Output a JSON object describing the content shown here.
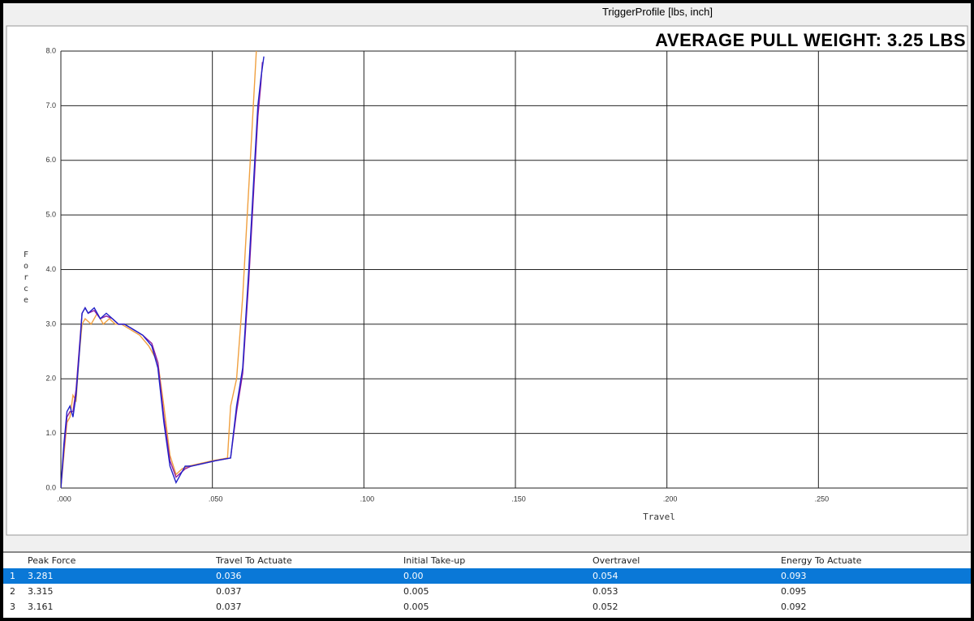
{
  "window": {
    "title": "TriggerProfile [lbs, inch]",
    "banner": "AVERAGE PULL WEIGHT: 3.25 LBS"
  },
  "chart_data": {
    "type": "line",
    "x_label": "Travel",
    "y_label": "Force",
    "xlim": [
      0,
      0.3
    ],
    "ylim": [
      0,
      8
    ],
    "xticks": [
      {
        "value": 0,
        "label": ".000"
      },
      {
        "value": 0.05,
        "label": ".050"
      },
      {
        "value": 0.1,
        "label": ".100"
      },
      {
        "value": 0.15,
        "label": ".150"
      },
      {
        "value": 0.2,
        "label": ".200"
      },
      {
        "value": 0.25,
        "label": ".250"
      }
    ],
    "yticks": [
      {
        "value": 0,
        "label": "0.0"
      },
      {
        "value": 1,
        "label": "1.0"
      },
      {
        "value": 2,
        "label": "2.0"
      },
      {
        "value": 3,
        "label": "3.0"
      },
      {
        "value": 4,
        "label": "4.0"
      },
      {
        "value": 5,
        "label": "5.0"
      },
      {
        "value": 6,
        "label": "6.0"
      },
      {
        "value": 7,
        "label": "7.0"
      },
      {
        "value": 8,
        "label": "8.0"
      }
    ],
    "grid": true,
    "series": [
      {
        "color": "#f0a040",
        "x": [
          0,
          0.001,
          0.002,
          0.003,
          0.004,
          0.005,
          0.006,
          0.007,
          0.008,
          0.01,
          0.012,
          0.014,
          0.016,
          0.018,
          0.02,
          0.023,
          0.026,
          0.029,
          0.032,
          0.034,
          0.036,
          0.038,
          0.04,
          0.042,
          0.046,
          0.05,
          0.055,
          0.056,
          0.058,
          0.06,
          0.062,
          0.0635,
          0.0645
        ],
        "values": [
          0,
          0.6,
          1.2,
          1.3,
          1.7,
          1.6,
          2.4,
          3.0,
          3.1,
          3.0,
          3.2,
          3.0,
          3.1,
          3.0,
          3.0,
          2.9,
          2.8,
          2.6,
          2.3,
          1.5,
          0.6,
          0.25,
          0.35,
          0.4,
          0.45,
          0.5,
          0.55,
          1.5,
          2.0,
          3.5,
          5.5,
          7.0,
          8.0
        ]
      },
      {
        "color": "#9020a0",
        "x": [
          0,
          0.001,
          0.002,
          0.003,
          0.004,
          0.005,
          0.006,
          0.007,
          0.008,
          0.009,
          0.011,
          0.013,
          0.015,
          0.017,
          0.019,
          0.021,
          0.024,
          0.027,
          0.03,
          0.032,
          0.034,
          0.036,
          0.038,
          0.04,
          0.041,
          0.043,
          0.047,
          0.051,
          0.056,
          0.058,
          0.06,
          0.062,
          0.063,
          0.064,
          0.065,
          0.066,
          0.0665
        ],
        "values": [
          0,
          0.7,
          1.3,
          1.4,
          1.4,
          1.8,
          2.5,
          3.2,
          3.3,
          3.2,
          3.25,
          3.1,
          3.15,
          3.1,
          3.0,
          3.0,
          2.9,
          2.8,
          2.65,
          2.3,
          1.3,
          0.5,
          0.2,
          0.3,
          0.35,
          0.4,
          0.45,
          0.5,
          0.55,
          1.4,
          2.1,
          3.8,
          4.8,
          5.8,
          6.8,
          7.4,
          7.8
        ]
      },
      {
        "color": "#2020c8",
        "x": [
          0,
          0.001,
          0.002,
          0.003,
          0.004,
          0.005,
          0.006,
          0.007,
          0.008,
          0.009,
          0.011,
          0.013,
          0.015,
          0.017,
          0.019,
          0.021,
          0.024,
          0.027,
          0.03,
          0.032,
          0.034,
          0.036,
          0.038,
          0.04,
          0.041,
          0.043,
          0.047,
          0.051,
          0.056,
          0.058,
          0.06,
          0.062,
          0.063,
          0.064,
          0.065,
          0.066,
          0.067
        ],
        "values": [
          0,
          0.8,
          1.4,
          1.5,
          1.3,
          1.7,
          2.4,
          3.2,
          3.3,
          3.2,
          3.3,
          3.1,
          3.2,
          3.1,
          3.0,
          3.0,
          2.9,
          2.8,
          2.6,
          2.2,
          1.2,
          0.4,
          0.1,
          0.3,
          0.4,
          0.4,
          0.45,
          0.5,
          0.55,
          1.5,
          2.2,
          4.0,
          5.0,
          6.0,
          7.0,
          7.5,
          7.9
        ]
      }
    ]
  },
  "table": {
    "columns": [
      "Peak Force",
      "Travel To Actuate",
      "Initial Take-up",
      "Overtravel",
      "Energy To Actuate"
    ],
    "rows": [
      {
        "index": "1",
        "cells": [
          "3.281",
          "0.036",
          "0.00",
          "0.054",
          "0.093"
        ]
      },
      {
        "index": "2",
        "cells": [
          "3.315",
          "0.037",
          "0.005",
          "0.053",
          "0.095"
        ]
      },
      {
        "index": "3",
        "cells": [
          "3.161",
          "0.037",
          "0.005",
          "0.052",
          "0.092"
        ]
      }
    ]
  }
}
